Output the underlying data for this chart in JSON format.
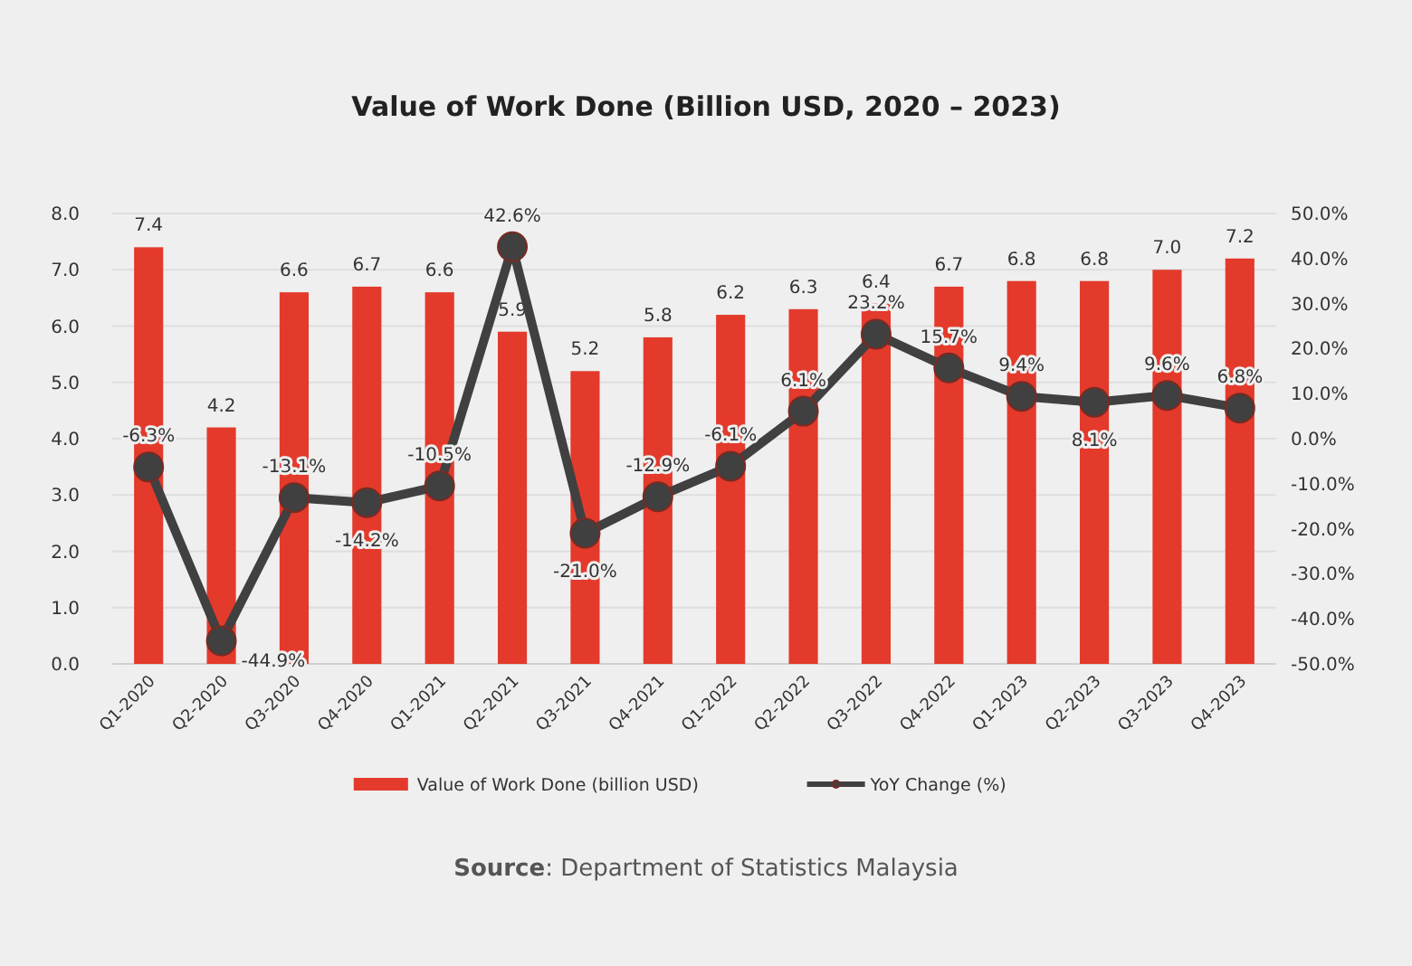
{
  "chart_data": {
    "type": "bar",
    "title": "Value of Work Done (Billion USD, 2020 – 2023)",
    "categories": [
      "Q1-2020",
      "Q2-2020",
      "Q3-2020",
      "Q4-2020",
      "Q1-2021",
      "Q2-2021",
      "Q3-2021",
      "Q4-2021",
      "Q1-2022",
      "Q2-2022",
      "Q3-2022",
      "Q4-2022",
      "Q1-2023",
      "Q2-2023",
      "Q3-2023",
      "Q4-2023"
    ],
    "series": [
      {
        "name": "Value of Work Done (billion USD)",
        "color": "#e33a2c",
        "values": [
          7.4,
          4.2,
          6.6,
          6.7,
          6.6,
          5.9,
          5.2,
          5.8,
          6.2,
          6.3,
          6.4,
          6.7,
          6.8,
          6.8,
          7.0,
          7.2
        ],
        "value_labels": [
          "7.4",
          "4.2",
          "6.6",
          "6.7",
          "6.6",
          "5.9",
          "5.2",
          "5.8",
          "6.2",
          "6.3",
          "6.4",
          "6.7",
          "6.8",
          "6.8",
          "7.0",
          "7.2"
        ]
      },
      {
        "name": "YoY Change (%)",
        "type": "line",
        "axis": "y2",
        "color": "#404040",
        "marker": "circle",
        "values": [
          -6.3,
          -44.9,
          -13.1,
          -14.2,
          -10.5,
          42.6,
          -21.0,
          -12.9,
          -6.1,
          6.1,
          23.2,
          15.7,
          9.4,
          8.1,
          9.6,
          6.8
        ],
        "value_labels": [
          "-6.3%",
          "-44.9%",
          "-13.1%",
          "-14.2%",
          "-10.5%",
          "42.6%",
          "-21.0%",
          "-12.9%",
          "-6.1%",
          "6.1%",
          "23.2%",
          "15.7%",
          "9.4%",
          "8.1%",
          "9.6%",
          "6.8%"
        ]
      }
    ],
    "ylim": [
      0,
      8
    ],
    "yticks": [
      {
        "value": 0,
        "label": "0.0"
      },
      {
        "value": 1,
        "label": "1.0"
      },
      {
        "value": 2,
        "label": "2.0"
      },
      {
        "value": 3,
        "label": "3.0"
      },
      {
        "value": 4,
        "label": "4.0"
      },
      {
        "value": 5,
        "label": "5.0"
      },
      {
        "value": 6,
        "label": "6.0"
      },
      {
        "value": 7,
        "label": "7.0"
      },
      {
        "value": 8,
        "label": "8.0"
      }
    ],
    "y2lim": [
      -50,
      50
    ],
    "y2ticks": [
      {
        "value": -50,
        "label": "-50.0%"
      },
      {
        "value": -40,
        "label": "-40.0%"
      },
      {
        "value": -30,
        "label": "-30.0%"
      },
      {
        "value": -20,
        "label": "-20.0%"
      },
      {
        "value": -10,
        "label": "-10.0%"
      },
      {
        "value": 0,
        "label": "0.0%"
      },
      {
        "value": 10,
        "label": "10.0%"
      },
      {
        "value": 20,
        "label": "20.0%"
      },
      {
        "value": 30,
        "label": "30.0%"
      },
      {
        "value": 40,
        "label": "40.0%"
      },
      {
        "value": 50,
        "label": "50.0%"
      }
    ],
    "grid": "y",
    "legend": "bottom",
    "annotations": [
      "Source: Department of Statistics Malaysia"
    ]
  }
}
